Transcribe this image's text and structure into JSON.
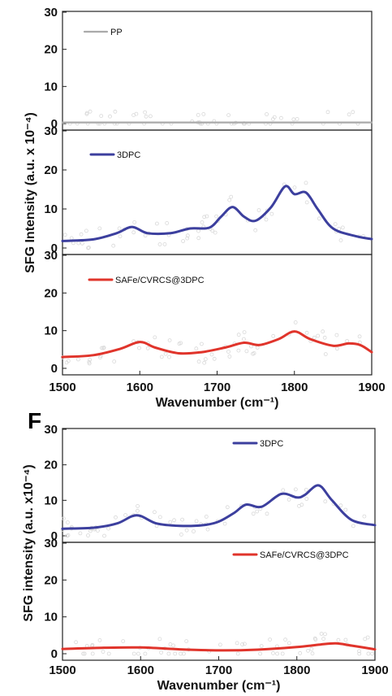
{
  "chart_data": [
    {
      "type": "line",
      "xlabel": "Wavenumber (cm⁻¹)",
      "ylabel": "SFG Intensity (a.u. x 10⁻⁴)",
      "xlim": [
        1500,
        1900
      ],
      "xticks": [
        "1500",
        "1600",
        "1700",
        "1800",
        "1900"
      ],
      "panels": [
        {
          "ylim": [
            0,
            30
          ],
          "yticks": [
            "0",
            "10",
            "20",
            "30"
          ],
          "series": [
            {
              "name": "PP",
              "color": "#aaaaaa",
              "x": [
                1500,
                1600,
                1700,
                1800,
                1900
              ],
              "y": [
                0.3,
                0.3,
                0.3,
                0.3,
                0.3
              ]
            }
          ]
        },
        {
          "ylim": [
            0,
            30
          ],
          "yticks": [
            "0",
            "10",
            "20",
            "30"
          ],
          "series": [
            {
              "name": "3DPC",
              "color": "#3c3f9e",
              "x": [
                1500,
                1540,
                1570,
                1590,
                1610,
                1640,
                1665,
                1690,
                1705,
                1720,
                1735,
                1750,
                1770,
                1788,
                1800,
                1815,
                1830,
                1850,
                1880,
                1900
              ],
              "y": [
                1.8,
                2.2,
                3.8,
                5.4,
                3.8,
                3.8,
                5.0,
                5.2,
                8.0,
                10.5,
                8.0,
                7.0,
                10.5,
                15.8,
                13.8,
                14.2,
                10.0,
                5.0,
                3.0,
                2.3
              ]
            }
          ]
        },
        {
          "ylim": [
            0,
            30
          ],
          "yticks": [
            "0",
            "10",
            "20",
            "30"
          ],
          "series": [
            {
              "name": "SAFe/CVRCS@3DPC",
              "color": "#e0342b",
              "x": [
                1500,
                1540,
                1575,
                1600,
                1620,
                1650,
                1680,
                1710,
                1735,
                1755,
                1780,
                1800,
                1820,
                1850,
                1870,
                1885,
                1900
              ],
              "y": [
                3.0,
                3.5,
                5.2,
                7.0,
                5.5,
                4.0,
                4.3,
                5.5,
                6.8,
                6.2,
                7.8,
                9.8,
                7.8,
                6.0,
                6.6,
                6.2,
                4.3
              ]
            }
          ]
        }
      ]
    },
    {
      "type": "line",
      "panel_label": "F",
      "xlabel": "Wavenumber (cm⁻¹)",
      "ylabel": "SFG intensity (a.u. x10⁻⁴)",
      "xlim": [
        1500,
        1900
      ],
      "xticks": [
        "1500",
        "1600",
        "1700",
        "1800",
        "1900"
      ],
      "panels": [
        {
          "ylim": [
            0,
            30
          ],
          "yticks": [
            "0",
            "10",
            "20",
            "30"
          ],
          "series": [
            {
              "name": "3DPC",
              "color": "#3c3f9e",
              "x": [
                1500,
                1540,
                1570,
                1595,
                1620,
                1650,
                1680,
                1700,
                1720,
                1735,
                1755,
                1780,
                1800,
                1810,
                1828,
                1845,
                1870,
                1900
              ],
              "y": [
                2.0,
                2.3,
                3.5,
                5.8,
                3.5,
                2.8,
                3.0,
                4.0,
                6.5,
                8.8,
                8.2,
                11.8,
                10.8,
                11.5,
                14.2,
                10.0,
                4.5,
                3.0
              ]
            }
          ]
        },
        {
          "ylim": [
            0,
            30
          ],
          "yticks": [
            "0",
            "10",
            "20",
            "30"
          ],
          "series": [
            {
              "name": "SAFe/CVRCS@3DPC",
              "color": "#e0342b",
              "x": [
                1500,
                1550,
                1600,
                1650,
                1700,
                1750,
                1800,
                1830,
                1850,
                1870,
                1900
              ],
              "y": [
                1.3,
                1.6,
                1.7,
                1.2,
                0.9,
                1.1,
                1.8,
                2.5,
                2.8,
                2.2,
                1.2
              ]
            }
          ]
        }
      ]
    }
  ]
}
